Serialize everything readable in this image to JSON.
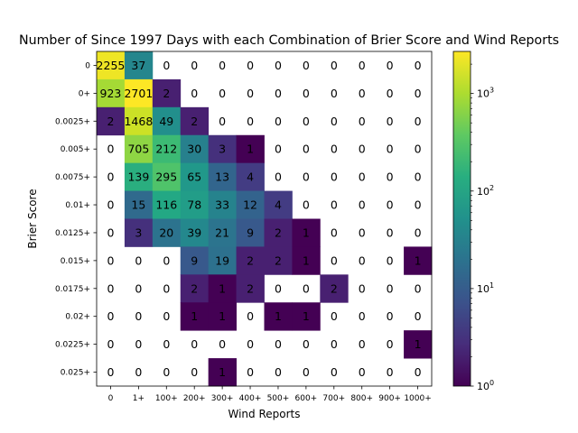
{
  "chart_data": {
    "type": "heatmap",
    "title": "Number of Since 1997 Days with each Combination of Brier Score and Wind Reports",
    "xlabel": "Wind Reports",
    "ylabel": "Brier Score",
    "x_categories": [
      "0",
      "1+",
      "100+",
      "200+",
      "300+",
      "400+",
      "500+",
      "600+",
      "700+",
      "800+",
      "900+",
      "1000+"
    ],
    "y_categories": [
      "0",
      "0+",
      "0.0025+",
      "0.005+",
      "0.0075+",
      "0.01+",
      "0.0125+",
      "0.015+",
      "0.0175+",
      "0.02+",
      "0.0225+",
      "0.025+"
    ],
    "values": [
      [
        2255,
        37,
        0,
        0,
        0,
        0,
        0,
        0,
        0,
        0,
        0,
        0
      ],
      [
        923,
        2701,
        2,
        0,
        0,
        0,
        0,
        0,
        0,
        0,
        0,
        0
      ],
      [
        2,
        1468,
        49,
        2,
        0,
        0,
        0,
        0,
        0,
        0,
        0,
        0
      ],
      [
        0,
        705,
        212,
        30,
        3,
        1,
        0,
        0,
        0,
        0,
        0,
        0
      ],
      [
        0,
        139,
        295,
        65,
        13,
        4,
        0,
        0,
        0,
        0,
        0,
        0
      ],
      [
        0,
        15,
        116,
        78,
        33,
        12,
        4,
        0,
        0,
        0,
        0,
        0
      ],
      [
        0,
        3,
        20,
        39,
        21,
        9,
        2,
        1,
        0,
        0,
        0,
        0
      ],
      [
        0,
        0,
        0,
        9,
        19,
        2,
        2,
        1,
        0,
        0,
        0,
        1
      ],
      [
        0,
        0,
        0,
        2,
        1,
        2,
        0,
        0,
        2,
        0,
        0,
        0
      ],
      [
        0,
        0,
        0,
        1,
        1,
        0,
        1,
        1,
        0,
        0,
        0,
        0
      ],
      [
        0,
        0,
        0,
        0,
        0,
        0,
        0,
        0,
        0,
        0,
        0,
        1
      ],
      [
        0,
        0,
        0,
        0,
        1,
        0,
        0,
        0,
        0,
        0,
        0,
        0
      ]
    ],
    "color_scale": "log",
    "colormap": "viridis",
    "zero_cells": "blank",
    "colorbar": {
      "range": [
        1,
        2701
      ],
      "ticks": [
        {
          "value": 1,
          "base": "10",
          "exp": "0"
        },
        {
          "value": 10,
          "base": "10",
          "exp": "1"
        },
        {
          "value": 100,
          "base": "10",
          "exp": "2"
        },
        {
          "value": 1000,
          "base": "10",
          "exp": "3"
        }
      ]
    },
    "grid": false
  }
}
